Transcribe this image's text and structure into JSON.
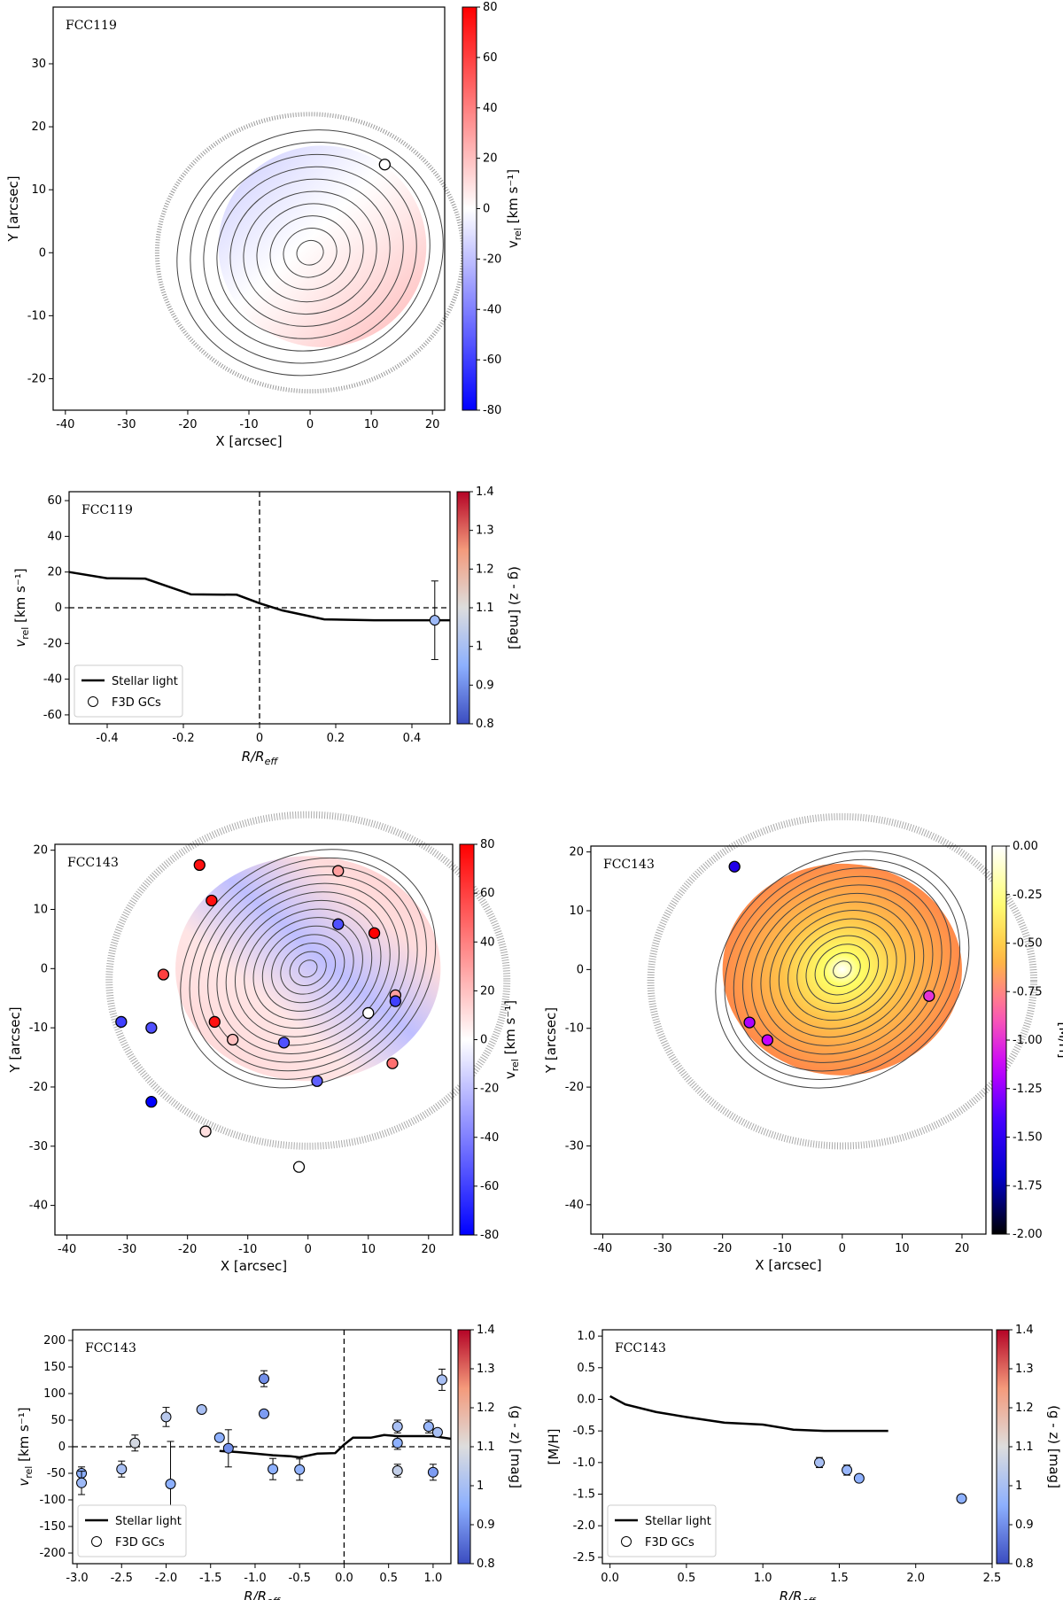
{
  "chart_data": [
    {
      "id": "vmap119",
      "type": "scatter",
      "panel_title": "FCC119",
      "xlabel": "X [arcsec]",
      "ylabel": "Y [arcsec]",
      "xlim": [
        -42,
        22
      ],
      "ylim": [
        -25,
        39
      ],
      "xticks": [
        -40,
        -30,
        -20,
        -10,
        0,
        10,
        20
      ],
      "yticks": [
        -20,
        -10,
        0,
        10,
        20,
        30
      ],
      "colorbar": {
        "label_main": "v",
        "label_sub": "rel",
        "label_unit": " [km s⁻¹]",
        "min": -80,
        "max": 80,
        "ticks": [
          80,
          60,
          40,
          20,
          0,
          -20,
          -40,
          -60,
          -80
        ]
      },
      "points": [
        {
          "x": 12.2,
          "y": 14.0,
          "v": 0
        }
      ]
    },
    {
      "id": "prof119",
      "type": "line",
      "panel_title": "FCC119",
      "xlabel": "R/R",
      "xlabel_sub": "eff",
      "ylabel": "v",
      "ylabel_sub": "rel",
      "ylabel_unit": " [km s⁻¹]",
      "xlim": [
        -0.5,
        0.5
      ],
      "ylim": [
        -65,
        65
      ],
      "xticks": [
        -0.4,
        -0.2,
        0.0,
        0.2,
        0.4
      ],
      "yticks": [
        60,
        40,
        20,
        0,
        -20,
        -40,
        -60
      ],
      "colorbar": {
        "label": "(g - z) [mag]",
        "min": 0.8,
        "max": 1.4,
        "ticks": [
          1.4,
          1.3,
          1.2,
          1.1,
          1.0,
          0.9,
          0.8
        ]
      },
      "series": [
        {
          "name": "Stellar light",
          "x": [
            -0.5,
            -0.4,
            -0.3,
            -0.18,
            -0.06,
            0.0,
            0.06,
            0.17,
            0.3,
            0.5
          ],
          "y": [
            20,
            16.5,
            16.3,
            7.5,
            7.3,
            2.5,
            -1.5,
            -6.5,
            -7.0,
            -7.0
          ]
        }
      ],
      "gcs": [
        {
          "x": 0.46,
          "y": -7,
          "err": 22,
          "color": 0.98
        }
      ],
      "legend": [
        "Stellar light",
        "F3D GCs"
      ]
    },
    {
      "id": "vmap143",
      "type": "scatter",
      "panel_title": "FCC143",
      "xlabel": "X [arcsec]",
      "ylabel": "Y [arcsec]",
      "xlim": [
        -42,
        24
      ],
      "ylim": [
        -45,
        21
      ],
      "xticks": [
        -40,
        -30,
        -20,
        -10,
        0,
        10,
        20
      ],
      "yticks": [
        20,
        10,
        0,
        -10,
        -20,
        -30,
        -40
      ],
      "colorbar": {
        "label_main": "v",
        "label_sub": "rel",
        "label_unit": " [km s⁻¹]",
        "min": -80,
        "max": 80,
        "ticks": [
          80,
          60,
          40,
          20,
          0,
          -20,
          -40,
          -60,
          -80
        ]
      },
      "points": [
        {
          "x": -18,
          "y": 17.5,
          "v": 75
        },
        {
          "x": -16,
          "y": 11.5,
          "v": 75
        },
        {
          "x": 5,
          "y": 16.5,
          "v": 30
        },
        {
          "x": 5,
          "y": 7.5,
          "v": -55
        },
        {
          "x": 11,
          "y": 6,
          "v": 80
        },
        {
          "x": -24,
          "y": -1,
          "v": 60
        },
        {
          "x": -31,
          "y": -9,
          "v": -60
        },
        {
          "x": -26,
          "y": -10,
          "v": -55
        },
        {
          "x": -15.5,
          "y": -9,
          "v": 75
        },
        {
          "x": -12.5,
          "y": -12,
          "v": 20
        },
        {
          "x": -4,
          "y": -12.5,
          "v": -55
        },
        {
          "x": 10,
          "y": -7.5,
          "v": 0
        },
        {
          "x": 14.5,
          "y": -4.5,
          "v": 30
        },
        {
          "x": 14.5,
          "y": -5.5,
          "v": -60
        },
        {
          "x": 14,
          "y": -16,
          "v": 45
        },
        {
          "x": 1.5,
          "y": -19,
          "v": -50
        },
        {
          "x": -26,
          "y": -22.5,
          "v": -80
        },
        {
          "x": -17,
          "y": -27.5,
          "v": 10
        },
        {
          "x": -1.5,
          "y": -33.5,
          "v": 0
        }
      ]
    },
    {
      "id": "mhmap143",
      "type": "scatter",
      "panel_title": "FCC143",
      "xlabel": "X [arcsec]",
      "ylabel": "Y [arcsec]",
      "xlim": [
        -42,
        24
      ],
      "ylim": [
        -45,
        21
      ],
      "xticks": [
        -40,
        -30,
        -20,
        -10,
        0,
        10,
        20
      ],
      "yticks": [
        20,
        10,
        0,
        -10,
        -20,
        -30,
        -40
      ],
      "colorbar": {
        "label": "[M/H]",
        "min": -2.0,
        "max": 0.0,
        "ticks": [
          "0.00",
          "-0.25",
          "-0.50",
          "-0.75",
          "-1.00",
          "-1.25",
          "-1.50",
          "-1.75",
          "-2.00"
        ]
      },
      "points": [
        {
          "x": -18,
          "y": 17.5,
          "mh": -1.55
        },
        {
          "x": -15.5,
          "y": -9,
          "mh": -1.2
        },
        {
          "x": -12.5,
          "y": -12,
          "mh": -1.15
        },
        {
          "x": 14.5,
          "y": -4.5,
          "mh": -1.0
        }
      ]
    },
    {
      "id": "prof143",
      "type": "line",
      "panel_title": "FCC143",
      "xlabel": "R/R",
      "xlabel_sub": "eff",
      "ylabel": "v",
      "ylabel_sub": "rel",
      "ylabel_unit": " [km s⁻¹]",
      "xlim": [
        -3.05,
        1.2
      ],
      "ylim": [
        -220,
        220
      ],
      "xticks": [
        "-3.0",
        "-2.5",
        "-2.0",
        "-1.5",
        "-1.0",
        "-0.5",
        "0.0",
        "0.5",
        "1.0"
      ],
      "yticks": [
        200,
        150,
        100,
        50,
        0,
        -50,
        -100,
        -150,
        -200
      ],
      "colorbar": {
        "label": "(g - z) [mag]",
        "min": 0.8,
        "max": 1.4,
        "ticks": [
          1.4,
          1.3,
          1.2,
          1.1,
          1.0,
          0.9,
          0.8
        ]
      },
      "series": [
        {
          "name": "Stellar light",
          "x": [
            -1.4,
            -1.2,
            -1.0,
            -0.8,
            -0.6,
            -0.5,
            -0.3,
            -0.1,
            0.0,
            0.1,
            0.3,
            0.45,
            0.6,
            0.8,
            1.0,
            1.2
          ],
          "y": [
            -8,
            -10,
            -13,
            -16,
            -18,
            -20,
            -13,
            -12,
            4,
            17,
            17,
            22,
            20,
            20,
            20,
            15
          ]
        }
      ],
      "gcs": [
        {
          "x": -2.95,
          "y": -50,
          "err": 12,
          "color": 0.95
        },
        {
          "x": -2.95,
          "y": -68,
          "err": 22,
          "color": 0.98
        },
        {
          "x": -2.5,
          "y": -42,
          "err": 15,
          "color": 1.0
        },
        {
          "x": -2.35,
          "y": 7,
          "err": 15,
          "color": 1.08
        },
        {
          "x": -2.0,
          "y": 56,
          "err": 18,
          "color": 1.03
        },
        {
          "x": -1.95,
          "y": -70,
          "err": 80,
          "color": 0.95
        },
        {
          "x": -1.6,
          "y": 70,
          "err": 0,
          "color": 1.0
        },
        {
          "x": -1.4,
          "y": 17,
          "err": 0,
          "color": 0.95
        },
        {
          "x": -1.3,
          "y": -3,
          "err": 35,
          "color": 0.9
        },
        {
          "x": -0.9,
          "y": 128,
          "err": 15,
          "color": 0.9
        },
        {
          "x": -0.9,
          "y": 62,
          "err": 0,
          "color": 0.92
        },
        {
          "x": -0.8,
          "y": -42,
          "err": 20,
          "color": 0.95
        },
        {
          "x": -0.5,
          "y": -43,
          "err": 20,
          "color": 0.96
        },
        {
          "x": 0.6,
          "y": 38,
          "err": 12,
          "color": 1.0
        },
        {
          "x": 0.6,
          "y": 7,
          "err": 12,
          "color": 0.95
        },
        {
          "x": 0.6,
          "y": -45,
          "err": 12,
          "color": 1.05
        },
        {
          "x": 0.95,
          "y": 38,
          "err": 12,
          "color": 0.97
        },
        {
          "x": 1.0,
          "y": -48,
          "err": 15,
          "color": 0.92
        },
        {
          "x": 1.05,
          "y": 27,
          "err": 0,
          "color": 1.0
        },
        {
          "x": 1.1,
          "y": 126,
          "err": 20,
          "color": 1.0
        }
      ],
      "legend": [
        "Stellar light",
        "F3D GCs"
      ]
    },
    {
      "id": "mhprof143",
      "type": "line",
      "panel_title": "FCC143",
      "xlabel": "R/R",
      "xlabel_sub": "eff",
      "ylabel": "[M/H]",
      "xlim": [
        -0.05,
        2.5
      ],
      "ylim": [
        -2.6,
        1.1
      ],
      "xticks": [
        "0.0",
        "0.5",
        "1.0",
        "1.5",
        "2.0",
        "2.5"
      ],
      "yticks": [
        "1.0",
        "0.5",
        "0.0",
        "-0.5",
        "-1.0",
        "-1.5",
        "-2.0",
        "-2.5"
      ],
      "colorbar": {
        "label": "(g - z) [mag]",
        "min": 0.8,
        "max": 1.4,
        "ticks": [
          1.4,
          1.3,
          1.2,
          1.1,
          1.0,
          0.9,
          0.8
        ]
      },
      "series": [
        {
          "name": "Stellar light",
          "x": [
            0.0,
            0.1,
            0.3,
            0.5,
            0.75,
            1.0,
            1.2,
            1.4,
            1.82
          ],
          "y": [
            0.05,
            -0.08,
            -0.2,
            -0.28,
            -0.37,
            -0.4,
            -0.48,
            -0.5,
            -0.5
          ]
        }
      ],
      "gcs": [
        {
          "x": 1.37,
          "y": -1.0,
          "err": 0.08,
          "color": 1.0
        },
        {
          "x": 1.55,
          "y": -1.12,
          "err": 0.08,
          "color": 0.97
        },
        {
          "x": 1.63,
          "y": -1.25,
          "err": 0.06,
          "color": 0.95
        },
        {
          "x": 2.3,
          "y": -1.57,
          "err": 0,
          "color": 0.95
        }
      ],
      "legend": [
        "Stellar light",
        "F3D GCs"
      ]
    }
  ]
}
